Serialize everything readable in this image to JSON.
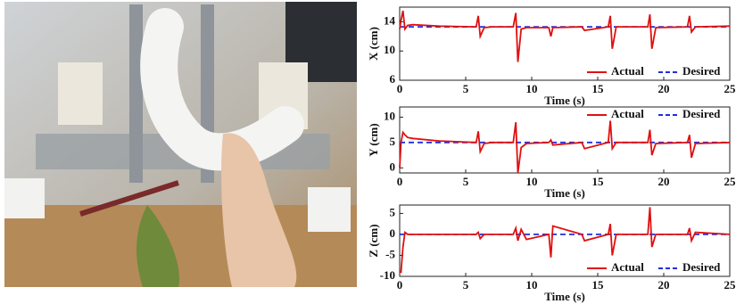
{
  "chart_data": [
    {
      "type": "line",
      "xlabel": "Time (s)",
      "ylabel": "X (cm)",
      "xlim": [
        0,
        25
      ],
      "xticks": [
        0,
        5,
        10,
        15,
        20,
        25
      ],
      "ylim": [
        6,
        16
      ],
      "yticks": [
        6,
        10,
        14
      ],
      "legend": "lower right",
      "series": [
        {
          "name": "Actual",
          "color": "#e01010",
          "linestyle": "solid",
          "x": [
            0,
            0.1,
            0.25,
            0.4,
            0.6,
            1,
            3,
            5.8,
            5.95,
            6.1,
            6.4,
            7,
            8.6,
            8.8,
            8.95,
            9.2,
            9.6,
            11.3,
            11.45,
            11.6,
            13.8,
            14,
            15.8,
            15.95,
            16.1,
            16.4,
            18.8,
            18.95,
            19.1,
            19.4,
            21.8,
            21.95,
            22.1,
            22.4,
            25
          ],
          "values": [
            13,
            14.2,
            15.5,
            13,
            13.5,
            13.6,
            13.4,
            13.3,
            14.8,
            12,
            13.2,
            13.3,
            13.3,
            15.2,
            8.5,
            13,
            13.2,
            13.2,
            12,
            13.2,
            13.3,
            12.8,
            13.3,
            14.8,
            10.3,
            13.3,
            13.3,
            15,
            10.3,
            13.2,
            13.3,
            14.8,
            12.6,
            13.3,
            13.4
          ]
        },
        {
          "name": "Desired",
          "color": "#1f2ee0",
          "linestyle": "dashed",
          "x": [
            0,
            25
          ],
          "values": [
            13.3,
            13.3
          ]
        }
      ]
    },
    {
      "type": "line",
      "xlabel": "Time (s)",
      "ylabel": "Y (cm)",
      "xlim": [
        0,
        25
      ],
      "xticks": [
        0,
        5,
        10,
        15,
        20,
        25
      ],
      "ylim": [
        -1,
        12
      ],
      "yticks": [
        0,
        5,
        10
      ],
      "legend": "upper right",
      "series": [
        {
          "name": "Actual",
          "color": "#e01010",
          "linestyle": "solid",
          "x": [
            0,
            0.1,
            0.25,
            0.4,
            0.6,
            1,
            3,
            5.8,
            5.95,
            6.1,
            6.4,
            7,
            8.6,
            8.8,
            8.95,
            9.2,
            9.6,
            11.3,
            11.45,
            11.6,
            13.8,
            14,
            15.8,
            15.95,
            16.1,
            16.4,
            18.8,
            18.95,
            19.1,
            19.4,
            21.8,
            21.95,
            22.1,
            22.4,
            25
          ],
          "values": [
            0,
            5,
            7,
            6.5,
            6,
            5.8,
            5.3,
            5,
            7.2,
            3.2,
            4.8,
            5,
            5,
            9,
            -1,
            4,
            4.8,
            5,
            5.5,
            4.5,
            5,
            3.8,
            5,
            9.3,
            3.8,
            5,
            5,
            7.5,
            2.5,
            4.8,
            5,
            6.5,
            2,
            4.8,
            5
          ]
        },
        {
          "name": "Desired",
          "color": "#1f2ee0",
          "linestyle": "dashed",
          "x": [
            0,
            25
          ],
          "values": [
            5,
            5
          ]
        }
      ]
    },
    {
      "type": "line",
      "xlabel": "Time (s)",
      "ylabel": "Z (cm)",
      "xlim": [
        0,
        25
      ],
      "xticks": [
        0,
        5,
        10,
        15,
        20,
        25
      ],
      "ylim": [
        -10,
        7
      ],
      "yticks": [
        -10,
        -5,
        0,
        5
      ],
      "legend": "lower right",
      "series": [
        {
          "name": "Actual",
          "color": "#e01010",
          "linestyle": "solid",
          "x": [
            0,
            0.1,
            0.25,
            0.4,
            0.6,
            1,
            3,
            5.8,
            5.95,
            6.1,
            6.4,
            7,
            8.6,
            8.8,
            8.95,
            9.2,
            9.6,
            11.3,
            11.45,
            11.6,
            13.8,
            14,
            15.8,
            15.95,
            16.1,
            16.4,
            18.8,
            18.95,
            19.1,
            19.4,
            21.8,
            21.95,
            22.1,
            22.4,
            25
          ],
          "values": [
            -9,
            -9,
            -3,
            0.5,
            0,
            0,
            0,
            0,
            0.5,
            -1,
            0,
            0,
            0,
            1.5,
            -1.5,
            1.2,
            -1.2,
            0,
            -5.5,
            2,
            0,
            -1.5,
            0,
            2.5,
            -5,
            0,
            0,
            6.5,
            -3,
            0,
            0,
            1.5,
            -1.5,
            0.5,
            0
          ]
        },
        {
          "name": "Desired",
          "color": "#1f2ee0",
          "linestyle": "dashed",
          "x": [
            0,
            25
          ],
          "values": [
            0,
            0
          ]
        }
      ]
    }
  ]
}
